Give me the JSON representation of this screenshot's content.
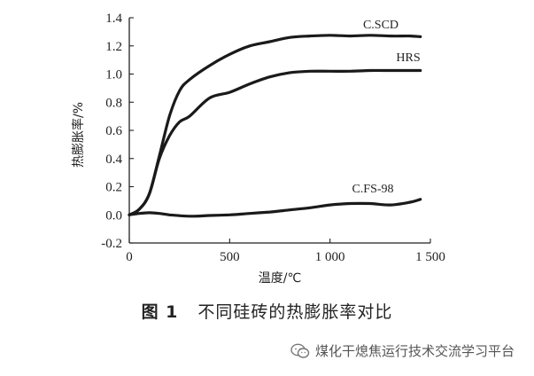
{
  "chart_data": {
    "type": "line",
    "xlabel": "温度/℃",
    "ylabel": "热膨胀率/%",
    "xlim": [
      0,
      1500
    ],
    "ylim": [
      -0.2,
      1.4
    ],
    "x_ticks": [
      0,
      500,
      1000,
      1500
    ],
    "x_tick_labels": [
      "0",
      "500",
      "1 000",
      "1 500"
    ],
    "y_ticks": [
      -0.2,
      0.0,
      0.2,
      0.4,
      0.6,
      0.8,
      1.0,
      1.2,
      1.4
    ],
    "y_tick_labels": [
      "-0.2",
      "0.0",
      "0.2",
      "0.4",
      "0.6",
      "0.8",
      "1.0",
      "1.2",
      "1.4"
    ],
    "grid": false,
    "series": [
      {
        "name": "C.SCD",
        "x": [
          0,
          50,
          100,
          150,
          200,
          250,
          300,
          400,
          500,
          600,
          700,
          800,
          900,
          1000,
          1100,
          1200,
          1300,
          1400,
          1450
        ],
        "y": [
          0.0,
          0.04,
          0.15,
          0.42,
          0.7,
          0.88,
          0.96,
          1.06,
          1.14,
          1.2,
          1.23,
          1.26,
          1.27,
          1.275,
          1.27,
          1.275,
          1.27,
          1.27,
          1.265
        ]
      },
      {
        "name": "HRS",
        "x": [
          0,
          50,
          100,
          150,
          200,
          250,
          300,
          400,
          500,
          600,
          700,
          800,
          900,
          1000,
          1100,
          1200,
          1300,
          1400,
          1450
        ],
        "y": [
          0.0,
          0.04,
          0.15,
          0.4,
          0.56,
          0.66,
          0.7,
          0.83,
          0.87,
          0.93,
          0.98,
          1.01,
          1.02,
          1.02,
          1.02,
          1.025,
          1.025,
          1.025,
          1.025
        ]
      },
      {
        "name": "C.FS-98",
        "x": [
          0,
          50,
          100,
          150,
          200,
          300,
          400,
          500,
          600,
          700,
          800,
          900,
          1000,
          1100,
          1200,
          1300,
          1400,
          1450
        ],
        "y": [
          0.0,
          0.01,
          0.015,
          0.01,
          0.0,
          -0.01,
          -0.005,
          0.0,
          0.01,
          0.02,
          0.035,
          0.05,
          0.07,
          0.08,
          0.08,
          0.07,
          0.09,
          0.11
        ]
      }
    ]
  },
  "caption": {
    "figure_number": "图 1",
    "text": "不同硅砖的热膨胀率对比"
  },
  "watermark": {
    "icon": "wechat-icon",
    "text": "煤化干熄焦运行技术交流学习平台"
  }
}
